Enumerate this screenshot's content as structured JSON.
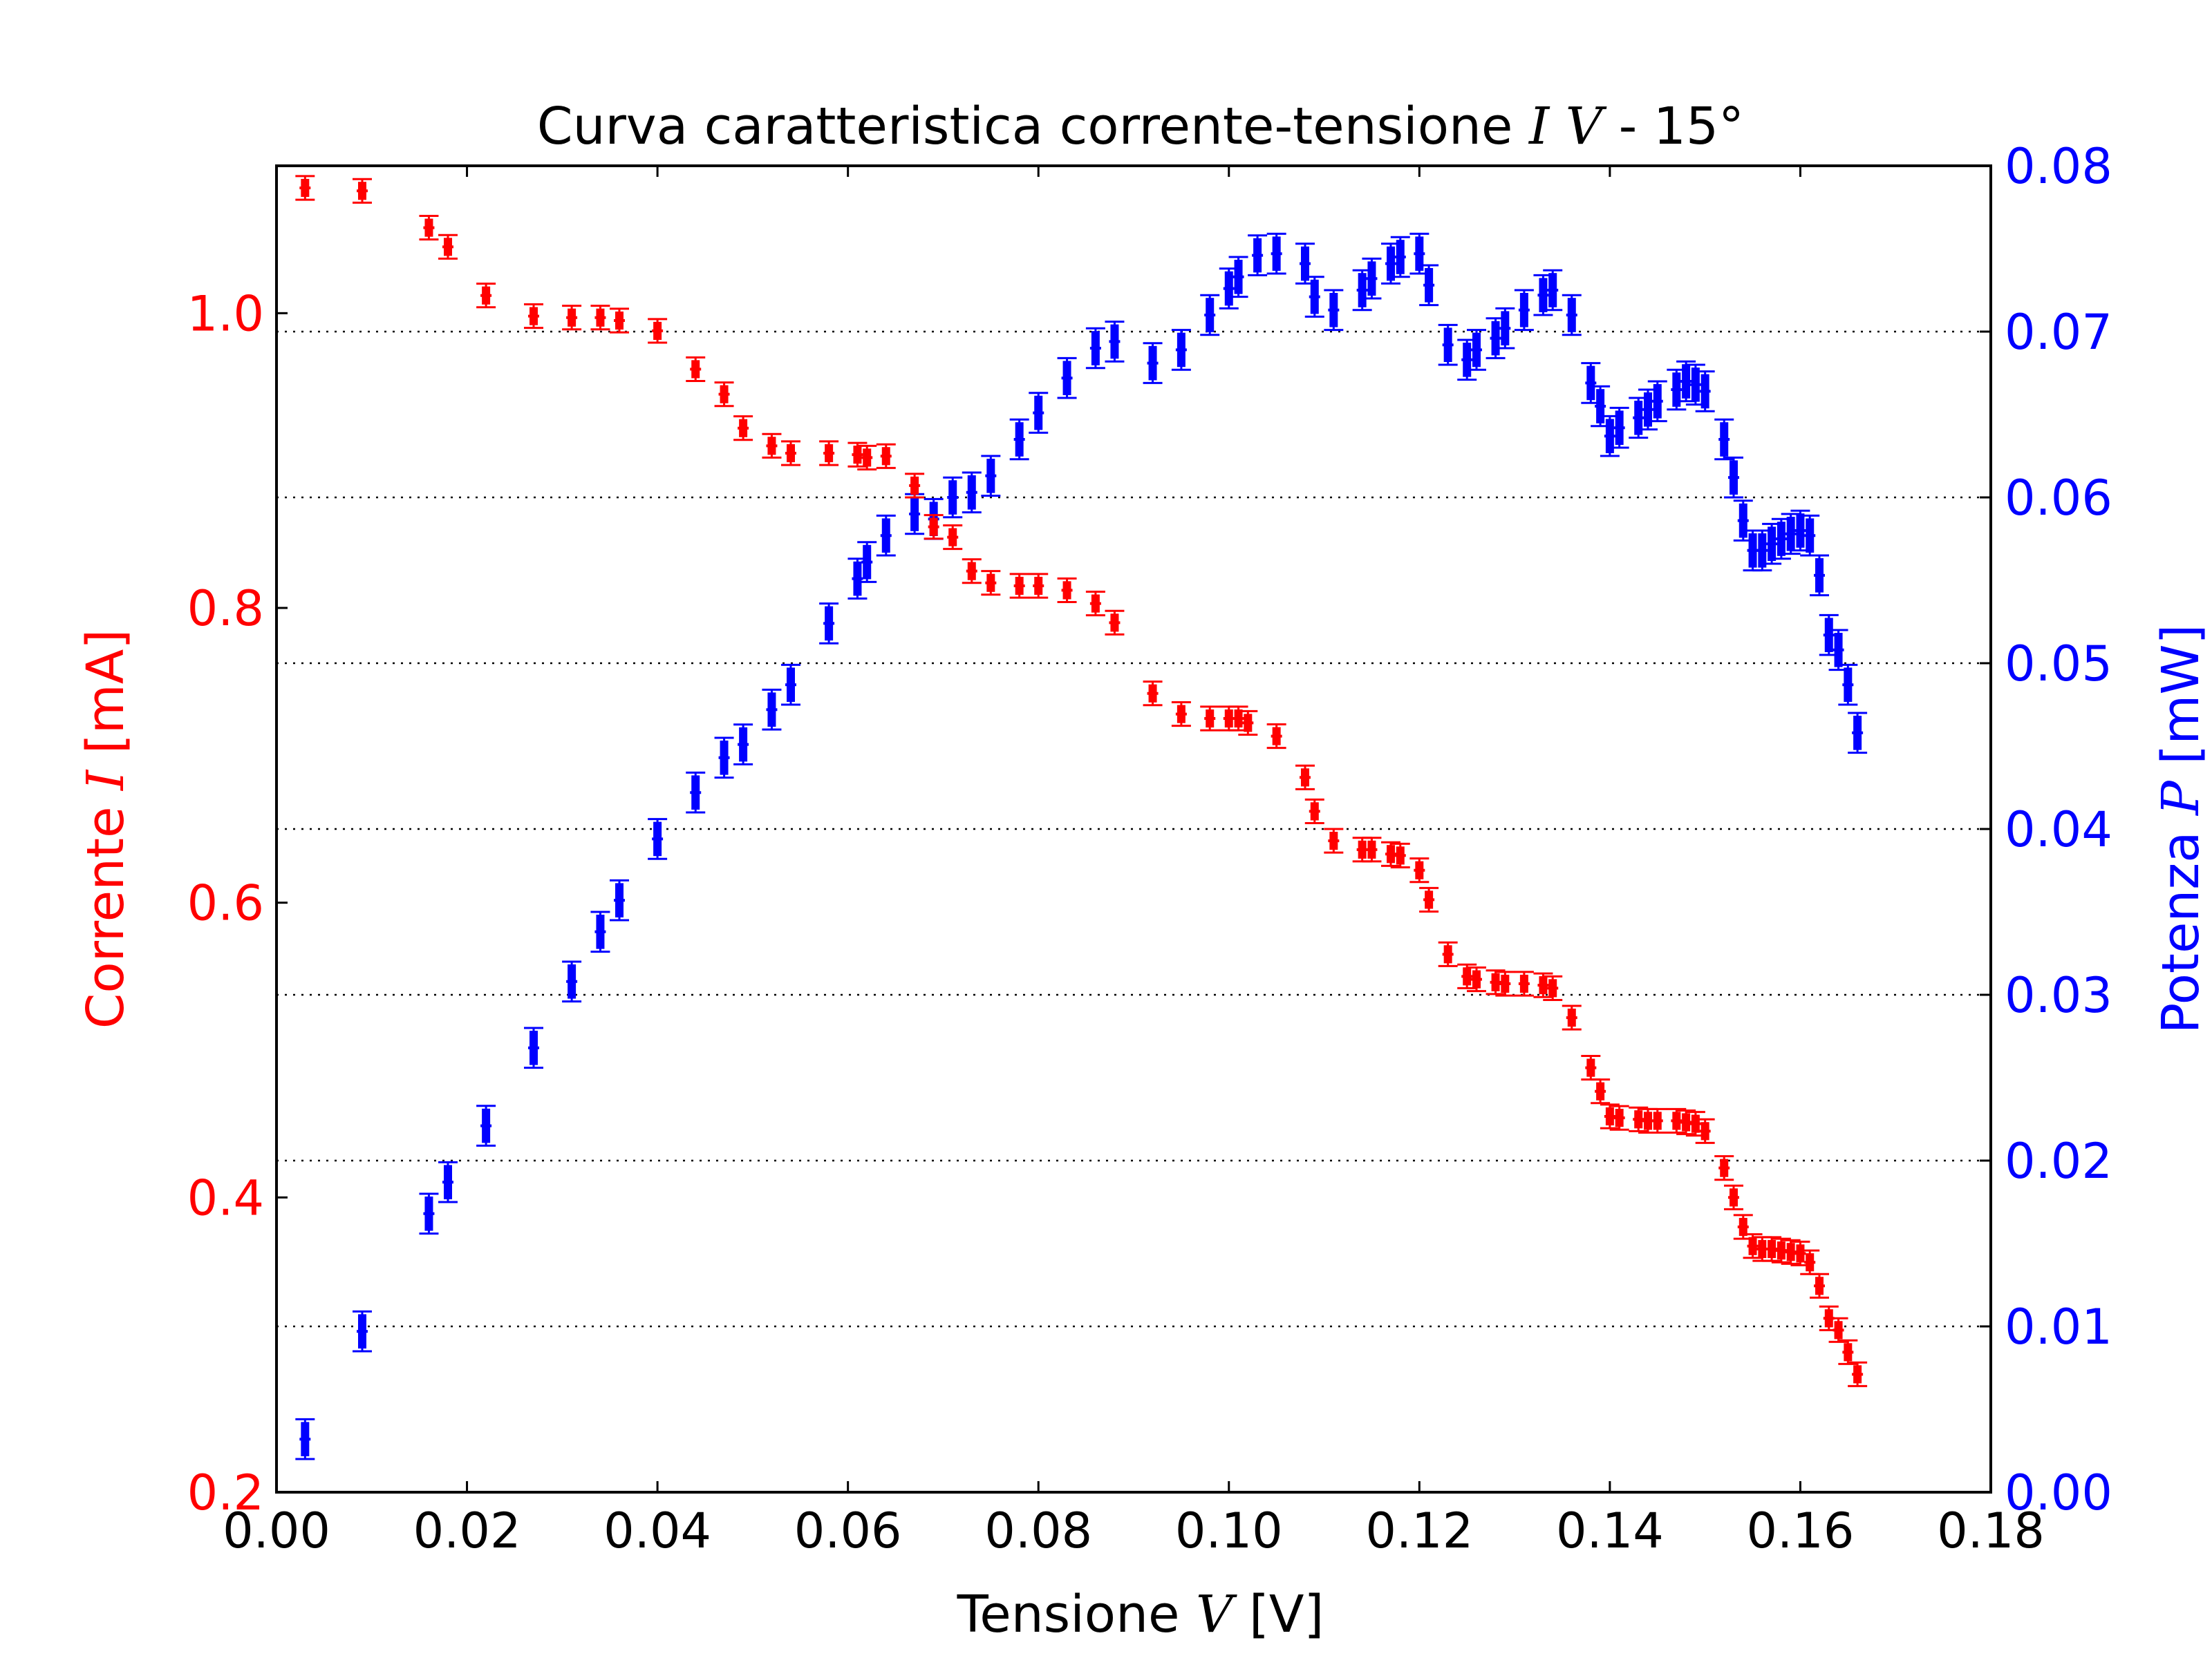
{
  "chart_data": {
    "type": "scatter",
    "title": {
      "prefix": "Curva caratteristica corrente-tensione ",
      "math": "I V",
      "suffix": " - 15°"
    },
    "xlabel": {
      "prefix": "Tensione ",
      "math": "V",
      "suffix": " [V]"
    },
    "ylabel_left": {
      "prefix": "Corrente ",
      "math": "I",
      "suffix": " [mA]"
    },
    "ylabel_right": {
      "prefix": "Potenza ",
      "math": "P",
      "suffix": " [mW]"
    },
    "xlim": [
      0.0,
      0.18
    ],
    "ylim_left": [
      0.2,
      1.1
    ],
    "ylim_right": [
      0.0,
      0.08
    ],
    "x_ticks": [
      "0.00",
      "0.02",
      "0.04",
      "0.06",
      "0.08",
      "0.10",
      "0.12",
      "0.14",
      "0.16",
      "0.18"
    ],
    "y_left_ticks": [
      "0.2",
      "0.4",
      "0.6",
      "0.8",
      "1.0"
    ],
    "y_right_ticks": [
      "0.00",
      "0.01",
      "0.02",
      "0.03",
      "0.04",
      "0.05",
      "0.06",
      "0.07",
      "0.08"
    ],
    "grid": "horizontal dotted on right axis ticks",
    "colors": {
      "current": "#ff0000",
      "power": "#0000ff",
      "axes": "#000000"
    },
    "series": [
      {
        "axis": "left",
        "color": "#ff0000",
        "err": 0.008,
        "points": [
          [
            0.003,
            1.085
          ],
          [
            0.009,
            1.083
          ],
          [
            0.016,
            1.058
          ],
          [
            0.018,
            1.045
          ],
          [
            0.022,
            1.012
          ],
          [
            0.027,
            0.998
          ],
          [
            0.031,
            0.997
          ],
          [
            0.034,
            0.997
          ],
          [
            0.036,
            0.995
          ],
          [
            0.04,
            0.988
          ],
          [
            0.044,
            0.962
          ],
          [
            0.047,
            0.945
          ],
          [
            0.049,
            0.922
          ],
          [
            0.052,
            0.91
          ],
          [
            0.054,
            0.905
          ],
          [
            0.058,
            0.905
          ],
          [
            0.061,
            0.904
          ],
          [
            0.062,
            0.902
          ],
          [
            0.064,
            0.903
          ],
          [
            0.067,
            0.883
          ],
          [
            0.069,
            0.855
          ],
          [
            0.071,
            0.848
          ],
          [
            0.073,
            0.825
          ],
          [
            0.075,
            0.817
          ],
          [
            0.078,
            0.815
          ],
          [
            0.08,
            0.815
          ],
          [
            0.083,
            0.812
          ],
          [
            0.086,
            0.803
          ],
          [
            0.088,
            0.79
          ],
          [
            0.092,
            0.742
          ],
          [
            0.095,
            0.728
          ],
          [
            0.098,
            0.725
          ],
          [
            0.1,
            0.725
          ],
          [
            0.101,
            0.725
          ],
          [
            0.102,
            0.722
          ],
          [
            0.105,
            0.713
          ],
          [
            0.108,
            0.685
          ],
          [
            0.109,
            0.662
          ],
          [
            0.111,
            0.642
          ],
          [
            0.114,
            0.636
          ],
          [
            0.115,
            0.636
          ],
          [
            0.117,
            0.633
          ],
          [
            0.118,
            0.632
          ],
          [
            0.12,
            0.622
          ],
          [
            0.121,
            0.602
          ],
          [
            0.123,
            0.565
          ],
          [
            0.125,
            0.55
          ],
          [
            0.126,
            0.548
          ],
          [
            0.128,
            0.546
          ],
          [
            0.129,
            0.545
          ],
          [
            0.131,
            0.545
          ],
          [
            0.133,
            0.544
          ],
          [
            0.134,
            0.542
          ],
          [
            0.136,
            0.522
          ],
          [
            0.138,
            0.488
          ],
          [
            0.139,
            0.472
          ],
          [
            0.14,
            0.455
          ],
          [
            0.141,
            0.454
          ],
          [
            0.143,
            0.453
          ],
          [
            0.144,
            0.452
          ],
          [
            0.145,
            0.452
          ],
          [
            0.147,
            0.452
          ],
          [
            0.148,
            0.451
          ],
          [
            0.149,
            0.45
          ],
          [
            0.15,
            0.445
          ],
          [
            0.152,
            0.42
          ],
          [
            0.153,
            0.4
          ],
          [
            0.154,
            0.38
          ],
          [
            0.155,
            0.367
          ],
          [
            0.156,
            0.365
          ],
          [
            0.157,
            0.365
          ],
          [
            0.158,
            0.364
          ],
          [
            0.159,
            0.363
          ],
          [
            0.16,
            0.362
          ],
          [
            0.161,
            0.356
          ],
          [
            0.162,
            0.34
          ],
          [
            0.163,
            0.318
          ],
          [
            0.164,
            0.31
          ],
          [
            0.165,
            0.295
          ],
          [
            0.166,
            0.28
          ]
        ]
      },
      {
        "axis": "right",
        "color": "#0000ff",
        "err": 0.0012,
        "points": [
          [
            0.003,
            0.0032
          ],
          [
            0.009,
            0.0097
          ],
          [
            0.016,
            0.0168
          ],
          [
            0.018,
            0.0187
          ],
          [
            0.022,
            0.0221
          ],
          [
            0.027,
            0.0268
          ],
          [
            0.031,
            0.0308
          ],
          [
            0.034,
            0.0338
          ],
          [
            0.036,
            0.0357
          ],
          [
            0.04,
            0.0394
          ],
          [
            0.044,
            0.0422
          ],
          [
            0.047,
            0.0443
          ],
          [
            0.049,
            0.0451
          ],
          [
            0.052,
            0.0472
          ],
          [
            0.054,
            0.0487
          ],
          [
            0.058,
            0.0524
          ],
          [
            0.061,
            0.0551
          ],
          [
            0.062,
            0.0561
          ],
          [
            0.064,
            0.0577
          ],
          [
            0.067,
            0.059
          ],
          [
            0.069,
            0.0587
          ],
          [
            0.071,
            0.06
          ],
          [
            0.073,
            0.0603
          ],
          [
            0.075,
            0.0613
          ],
          [
            0.078,
            0.0635
          ],
          [
            0.08,
            0.0651
          ],
          [
            0.083,
            0.0672
          ],
          [
            0.086,
            0.069
          ],
          [
            0.088,
            0.0694
          ],
          [
            0.092,
            0.0681
          ],
          [
            0.095,
            0.0689
          ],
          [
            0.098,
            0.071
          ],
          [
            0.1,
            0.0726
          ],
          [
            0.101,
            0.0733
          ],
          [
            0.103,
            0.0746
          ],
          [
            0.105,
            0.0747
          ],
          [
            0.108,
            0.0741
          ],
          [
            0.109,
            0.0721
          ],
          [
            0.111,
            0.0713
          ],
          [
            0.114,
            0.0725
          ],
          [
            0.115,
            0.0732
          ],
          [
            0.117,
            0.0741
          ],
          [
            0.118,
            0.0745
          ],
          [
            0.12,
            0.0747
          ],
          [
            0.121,
            0.0728
          ],
          [
            0.123,
            0.0692
          ],
          [
            0.125,
            0.0683
          ],
          [
            0.126,
            0.0689
          ],
          [
            0.128,
            0.0696
          ],
          [
            0.129,
            0.0702
          ],
          [
            0.131,
            0.0713
          ],
          [
            0.133,
            0.0722
          ],
          [
            0.134,
            0.0725
          ],
          [
            0.136,
            0.071
          ],
          [
            0.138,
            0.0669
          ],
          [
            0.139,
            0.0655
          ],
          [
            0.14,
            0.0637
          ],
          [
            0.141,
            0.0642
          ],
          [
            0.143,
            0.0648
          ],
          [
            0.144,
            0.0653
          ],
          [
            0.145,
            0.0658
          ],
          [
            0.147,
            0.0665
          ],
          [
            0.148,
            0.067
          ],
          [
            0.149,
            0.0668
          ],
          [
            0.15,
            0.0664
          ],
          [
            0.152,
            0.0635
          ],
          [
            0.153,
            0.0612
          ],
          [
            0.154,
            0.0586
          ],
          [
            0.155,
            0.0568
          ],
          [
            0.156,
            0.0568
          ],
          [
            0.157,
            0.0572
          ],
          [
            0.158,
            0.0575
          ],
          [
            0.159,
            0.0578
          ],
          [
            0.16,
            0.058
          ],
          [
            0.161,
            0.0577
          ],
          [
            0.162,
            0.0553
          ],
          [
            0.163,
            0.0517
          ],
          [
            0.164,
            0.0508
          ],
          [
            0.165,
            0.0487
          ],
          [
            0.166,
            0.0458
          ]
        ]
      }
    ]
  }
}
